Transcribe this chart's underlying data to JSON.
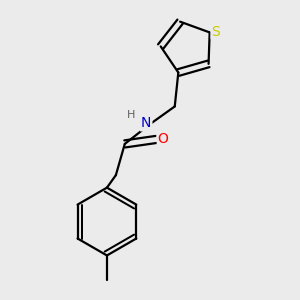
{
  "background_color": "#ebebeb",
  "bond_color": "#000000",
  "atom_colors": {
    "N": "#0000cc",
    "O": "#ff0000",
    "S": "#cccc00",
    "H": "#606060",
    "C": "#000000"
  },
  "bond_width": 1.6,
  "font_size_atoms": 10,
  "figsize": [
    3.0,
    3.0
  ],
  "dpi": 100
}
